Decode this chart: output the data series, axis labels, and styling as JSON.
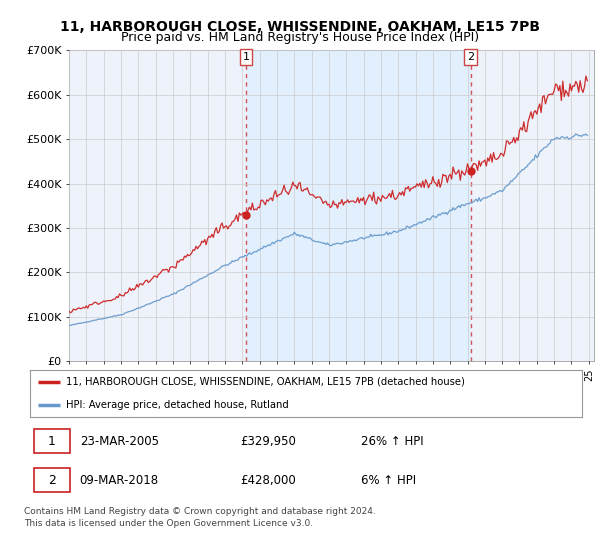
{
  "title_line1": "11, HARBOROUGH CLOSE, WHISSENDINE, OAKHAM, LE15 7PB",
  "title_line2": "Price paid vs. HM Land Registry's House Price Index (HPI)",
  "ylim": [
    0,
    700000
  ],
  "yticks": [
    0,
    100000,
    200000,
    300000,
    400000,
    500000,
    600000,
    700000
  ],
  "ytick_labels": [
    "£0",
    "£100K",
    "£200K",
    "£300K",
    "£400K",
    "£500K",
    "£600K",
    "£700K"
  ],
  "sale1_date": 2005.22,
  "sale1_price": 329950,
  "sale2_date": 2018.19,
  "sale2_price": 428000,
  "red_line_color": "#cc2222",
  "blue_line_color": "#6699cc",
  "fill_color": "#ddeeff",
  "vline_color": "#cc4444",
  "grid_color": "#cccccc",
  "bg_color": "#ffffff",
  "plot_bg_color": "#eef2fa",
  "legend_label1": "11, HARBOROUGH CLOSE, WHISSENDINE, OAKHAM, LE15 7PB (detached house)",
  "legend_label2": "HPI: Average price, detached house, Rutland",
  "annotation1_date": "23-MAR-2005",
  "annotation1_price": "£329,950",
  "annotation1_hpi": "26% ↑ HPI",
  "annotation2_date": "09-MAR-2018",
  "annotation2_price": "£428,000",
  "annotation2_hpi": "6% ↑ HPI",
  "footer_text": "Contains HM Land Registry data © Crown copyright and database right 2024.\nThis data is licensed under the Open Government Licence v3.0.",
  "title_fontsize": 10,
  "subtitle_fontsize": 9
}
